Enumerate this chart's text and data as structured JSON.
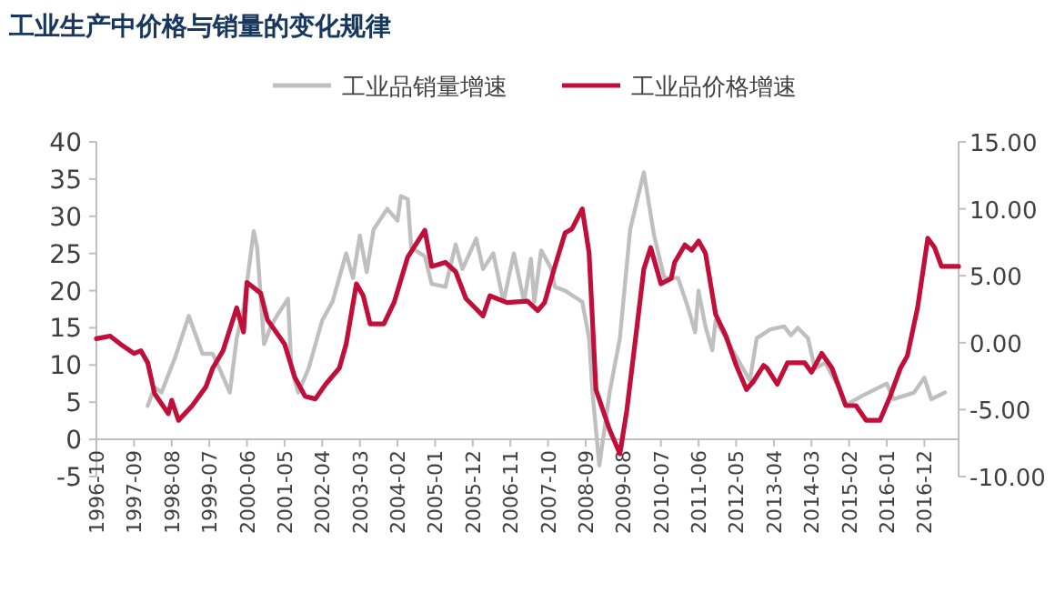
{
  "chart_data": {
    "type": "line",
    "title": "工业生产中价格与销量的变化规律",
    "xlim": [
      "1996-10",
      "2017-10"
    ],
    "xticks": [
      "1996-10",
      "1997-09",
      "1998-08",
      "1999-07",
      "2000-06",
      "2001-05",
      "2002-04",
      "2003-03",
      "2004-02",
      "2005-01",
      "2005-12",
      "2006-11",
      "2007-10",
      "2008-09",
      "2009-08",
      "2010-07",
      "2011-06",
      "2012-05",
      "2013-04",
      "2014-03",
      "2015-02",
      "2016-01",
      "2016-12"
    ],
    "ylim": [
      -5,
      40
    ],
    "yticks": [
      -5,
      0,
      5,
      10,
      15,
      20,
      25,
      30,
      35,
      40
    ],
    "y2lim": [
      -10,
      15
    ],
    "y2ticks": [
      {
        "value": -10,
        "label": "-10.00"
      },
      {
        "value": -5,
        "label": "-5.00"
      },
      {
        "value": 0,
        "label": "0.00"
      },
      {
        "value": 5,
        "label": "5.00"
      },
      {
        "value": 10,
        "label": "10.00"
      },
      {
        "value": 15,
        "label": "15.00"
      }
    ],
    "legend": "top",
    "marker": "none",
    "line_style": "solid",
    "series": [
      {
        "name": "工业品销量增速",
        "color": "#bfbfbf",
        "axis": "y",
        "x": [
          "1998-01",
          "1998-03",
          "1998-05",
          "1998-09",
          "1999-01",
          "1999-05",
          "1999-08",
          "1999-10",
          "2000-01",
          "2000-03",
          "2000-05",
          "2000-08",
          "2000-09",
          "2000-11",
          "2001-01",
          "2001-03",
          "2001-06",
          "2001-07",
          "2001-09",
          "2001-12",
          "2002-04",
          "2002-07",
          "2002-11",
          "2003-01",
          "2003-03",
          "2003-05",
          "2003-07",
          "2003-11",
          "2004-02",
          "2004-03",
          "2004-05",
          "2004-06",
          "2004-10",
          "2004-12",
          "2005-04",
          "2005-07",
          "2005-09",
          "2006-01",
          "2006-03",
          "2006-06",
          "2006-09",
          "2006-12",
          "2007-03",
          "2007-05",
          "2007-06",
          "2007-08",
          "2007-11",
          "2007-12",
          "2008-03",
          "2008-08",
          "2008-10",
          "2008-11",
          "2009-01",
          "2009-04",
          "2009-07",
          "2009-10",
          "2010-02",
          "2010-05",
          "2010-08",
          "2010-12",
          "2011-03",
          "2011-05",
          "2011-06",
          "2011-08",
          "2011-10",
          "2011-11",
          "2012-09",
          "2012-11",
          "2013-03",
          "2013-07",
          "2013-09",
          "2013-11",
          "2014-02",
          "2014-04",
          "2014-07",
          "2014-11",
          "2015-01",
          "2015-06",
          "2016-01",
          "2016-03",
          "2016-09",
          "2016-12",
          "2017-02",
          "2017-06"
        ],
        "values": [
          4.5,
          7,
          6.3,
          11,
          16.6,
          11.5,
          11.5,
          9.5,
          6.3,
          13.6,
          17.6,
          28,
          25.8,
          12.8,
          15.2,
          16.8,
          18.9,
          9.5,
          6.3,
          9.5,
          16,
          18.5,
          25,
          21.7,
          27.4,
          22.5,
          28.2,
          31,
          29.4,
          32.7,
          32.3,
          25.8,
          24.6,
          20.9,
          20.5,
          26.2,
          22.9,
          27,
          22.9,
          25,
          18.5,
          25,
          18.5,
          24.3,
          18.5,
          25.4,
          22.9,
          20.5,
          20,
          18.5,
          13.6,
          6.3,
          -3.5,
          6.3,
          13.6,
          28.2,
          35.9,
          27.4,
          21.7,
          21.7,
          17.6,
          14.4,
          20,
          15.2,
          12,
          16,
          7.9,
          13.6,
          14.8,
          15.2,
          14,
          15,
          13.6,
          9.5,
          10.3,
          7,
          4.6,
          5.9,
          7.5,
          5.4,
          6.3,
          8.3,
          5.4,
          6.3
        ]
      },
      {
        "name": "工业品价格增速",
        "color": "#c0103a",
        "axis": "y2",
        "x": [
          "1996-10",
          "1997-02",
          "1997-05",
          "1997-09",
          "1997-11",
          "1998-01",
          "1998-03",
          "1998-07",
          "1998-08",
          "1998-10",
          "1999-02",
          "1999-06",
          "1999-08",
          "1999-11",
          "2000-03",
          "2000-05",
          "2000-06",
          "2000-10",
          "2000-12",
          "2001-05",
          "2001-08",
          "2001-11",
          "2002-02",
          "2002-05",
          "2002-09",
          "2002-11",
          "2003-02",
          "2003-04",
          "2003-06",
          "2003-10",
          "2004-01",
          "2004-05",
          "2004-10",
          "2004-12",
          "2005-04",
          "2005-07",
          "2005-10",
          "2006-03",
          "2006-05",
          "2006-10",
          "2007-04",
          "2007-07",
          "2007-09",
          "2007-12",
          "2008-03",
          "2008-05",
          "2008-08",
          "2008-10",
          "2008-12",
          "2009-04",
          "2009-07",
          "2009-09",
          "2009-12",
          "2010-02",
          "2010-04",
          "2010-07",
          "2010-10",
          "2010-11",
          "2011-02",
          "2011-04",
          "2011-06",
          "2011-08",
          "2011-11",
          "2012-02",
          "2012-05",
          "2012-08",
          "2012-10",
          "2013-01",
          "2013-02",
          "2013-05",
          "2013-08",
          "2014-01",
          "2014-03",
          "2014-06",
          "2014-09",
          "2015-01",
          "2015-04",
          "2015-07",
          "2015-11",
          "2016-02",
          "2016-05",
          "2016-07",
          "2016-10",
          "2017-01",
          "2017-03",
          "2017-05",
          "2017-10"
        ],
        "values": [
          0.3,
          0.5,
          -0.1,
          -0.8,
          -0.6,
          -1.5,
          -3.8,
          -5.3,
          -4.3,
          -5.8,
          -4.7,
          -3.3,
          -1.9,
          -0.6,
          2.6,
          0.8,
          4.5,
          3.7,
          1.7,
          -0.1,
          -2.6,
          -4,
          -4.2,
          -3.1,
          -1.9,
          -0.1,
          4.4,
          3.5,
          1.4,
          1.4,
          3,
          6.4,
          8.4,
          5.7,
          6,
          5.3,
          3.3,
          2,
          3.5,
          3,
          3.1,
          2.4,
          3,
          5.7,
          8.2,
          8.5,
          10,
          6.7,
          -3.5,
          -6.5,
          -8.3,
          -5.1,
          1.2,
          5.5,
          7.1,
          4.4,
          4.8,
          6,
          7.3,
          6.9,
          7.6,
          6.7,
          2.1,
          0.5,
          -1.7,
          -3.5,
          -2.9,
          -1.7,
          -1.9,
          -3.1,
          -1.5,
          -1.5,
          -2.2,
          -0.8,
          -1.9,
          -4.7,
          -4.7,
          -5.8,
          -5.8,
          -4,
          -1.9,
          -1,
          2.6,
          7.8,
          7.1,
          5.7,
          5.7
        ]
      }
    ]
  }
}
